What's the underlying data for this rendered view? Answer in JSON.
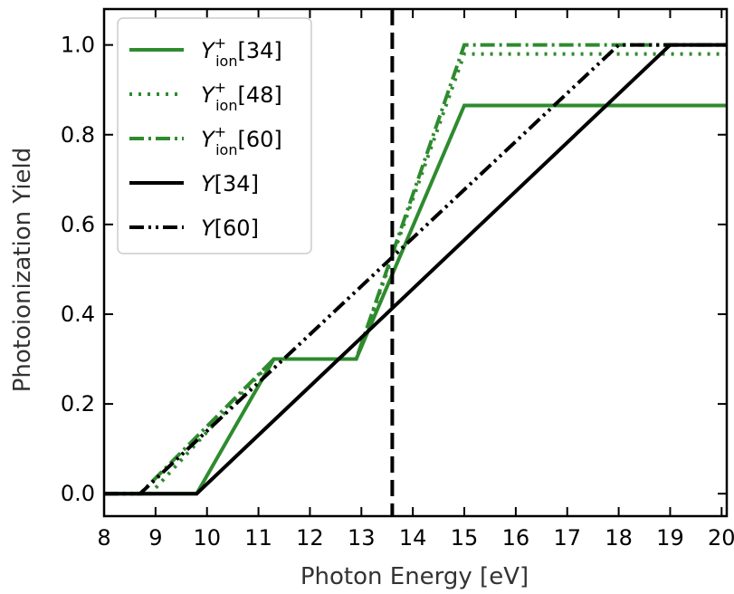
{
  "chart_data": {
    "type": "line",
    "xlabel": "Photon Energy [eV]",
    "ylabel": "Photoionization Yield",
    "xlim": [
      8,
      20.1
    ],
    "ylim": [
      -0.05,
      1.08
    ],
    "xticks": [
      8,
      9,
      10,
      11,
      12,
      13,
      14,
      15,
      16,
      17,
      18,
      19,
      20
    ],
    "yticks": [
      "0.0",
      "0.2",
      "0.4",
      "0.6",
      "0.8",
      "1.0"
    ],
    "grid": false,
    "legend_position": "top-left",
    "vline": {
      "x": 13.6,
      "color": "#000000",
      "style": "dashed"
    },
    "series": [
      {
        "name": "Y_ion^+[34]",
        "label_main": "Y",
        "label_sup": "+",
        "label_sub": "ion",
        "label_tail": "[34]",
        "color": "#2e8b2e",
        "style": "solid",
        "x": [
          8,
          9.8,
          11.3,
          12.9,
          15.0,
          20.1
        ],
        "y": [
          0,
          0,
          0.3,
          0.3,
          0.865,
          0.865
        ]
      },
      {
        "name": "Y_ion^+[48]",
        "label_main": "Y",
        "label_sup": "+",
        "label_sub": "ion",
        "label_tail": "[48]",
        "color": "#2e8b2e",
        "style": "dotted",
        "x": [
          8,
          8.9,
          11.3,
          12.9,
          15.0,
          20.1
        ],
        "y": [
          0,
          0,
          0.3,
          0.3,
          0.98,
          0.98
        ]
      },
      {
        "name": "Y_ion^+[60]",
        "label_main": "Y",
        "label_sup": "+",
        "label_sub": "ion",
        "label_tail": "[60]",
        "color": "#2e8b2e",
        "style": "dashdot",
        "x": [
          8,
          8.7,
          11.3,
          12.9,
          15.0,
          20.1
        ],
        "y": [
          0,
          0,
          0.3,
          0.3,
          1.0,
          1.0
        ]
      },
      {
        "name": "Y[34]",
        "label_main": "Y",
        "label_sup": "",
        "label_sub": "",
        "label_tail": "[34]",
        "color": "#000000",
        "style": "solid",
        "x": [
          8,
          9.8,
          19.0,
          20.1
        ],
        "y": [
          0,
          0,
          1.0,
          1.0
        ]
      },
      {
        "name": "Y[60]",
        "label_main": "Y",
        "label_sup": "",
        "label_sub": "",
        "label_tail": "[60]",
        "color": "#000000",
        "style": "dashdotdot",
        "x": [
          8,
          8.7,
          18.0,
          20.1
        ],
        "y": [
          0,
          0,
          1.0,
          1.0
        ]
      }
    ]
  }
}
